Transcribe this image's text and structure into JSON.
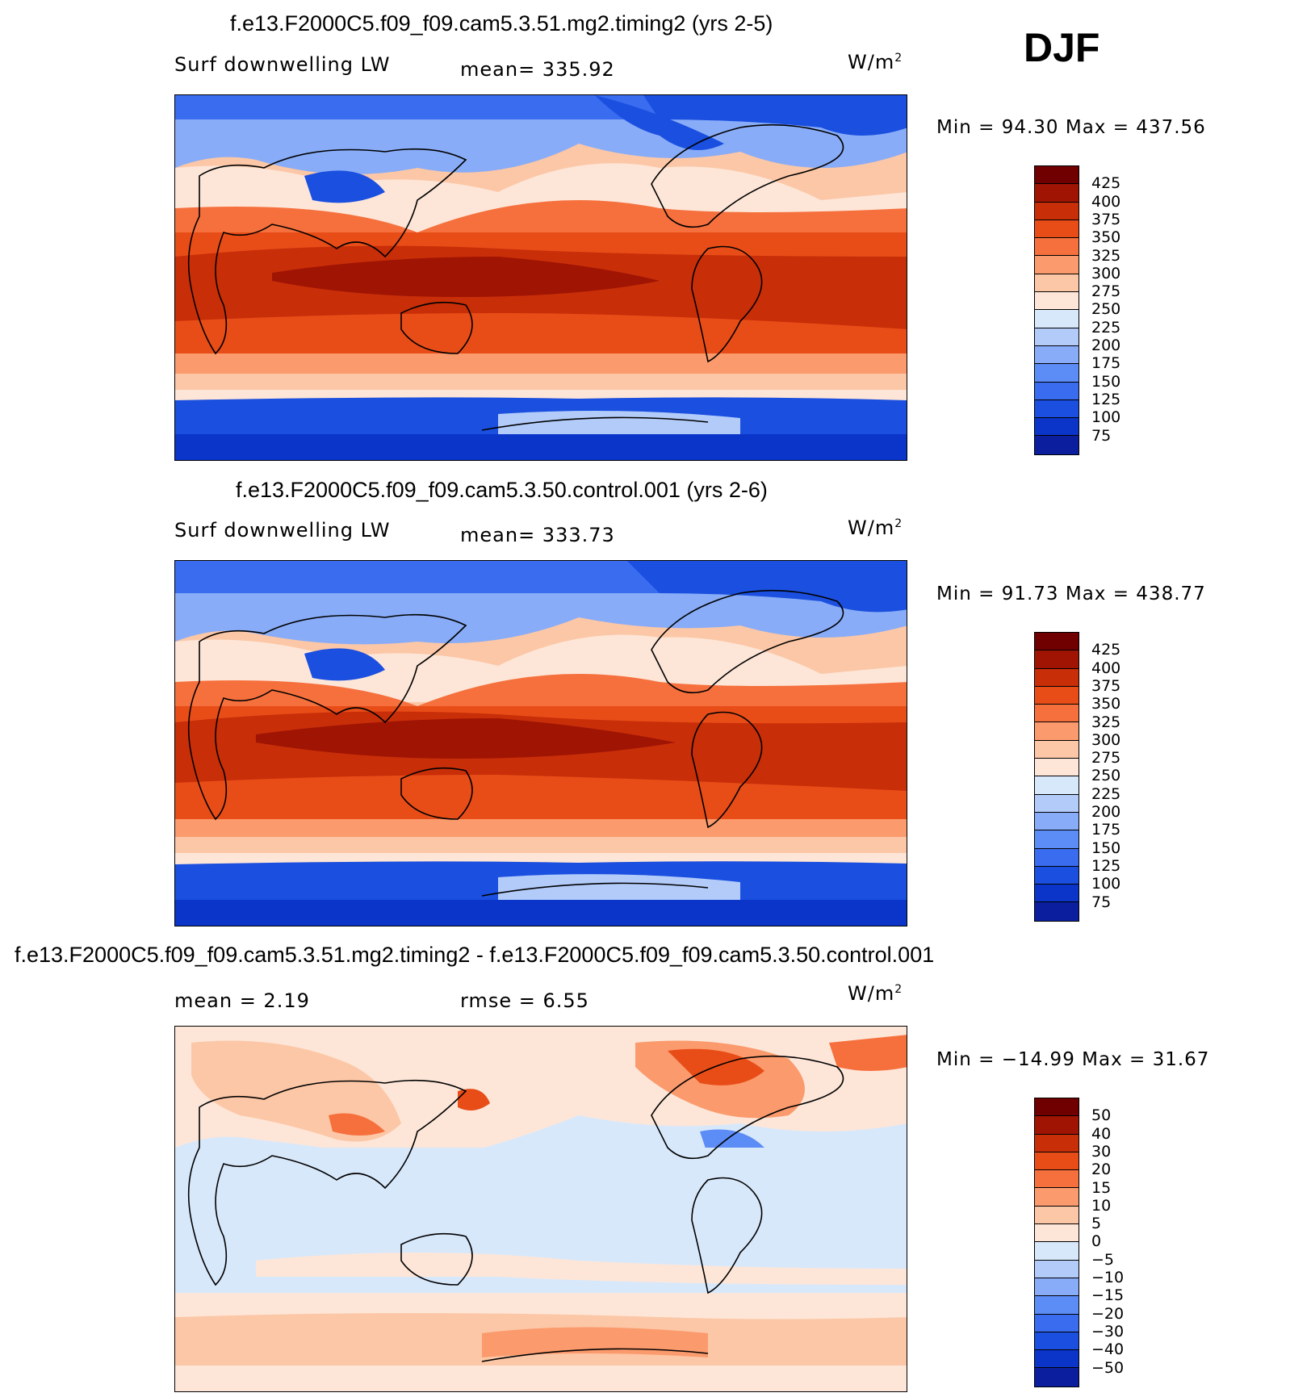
{
  "season": "DJF",
  "colors": {
    "abs": [
      "#0a0a8a",
      "#0b1f9e",
      "#0a35c8",
      "#1a4fe0",
      "#3a6cf0",
      "#5c8cf5",
      "#88acf7",
      "#b2cbf9",
      "#d8e8fb",
      "#fde6d8",
      "#fcc7a6",
      "#fb9a6c",
      "#f6703d",
      "#e84d18",
      "#c82e08",
      "#a01404",
      "#700000"
    ],
    "diff": [
      "#0a0a8a",
      "#0b1f9e",
      "#0a35c8",
      "#1a4fe0",
      "#3a6cf0",
      "#5c8cf5",
      "#88acf7",
      "#b2cbf9",
      "#d8e8fb",
      "#fde6d8",
      "#fcc7a6",
      "#fb9a6c",
      "#f6703d",
      "#e84d18",
      "#c82e08",
      "#a01404",
      "#700000"
    ]
  },
  "panels": [
    {
      "title": "f.e13.F2000C5.f09_f09.cam5.3.51.mg2.timing2 (yrs 2-5)",
      "left_label": "Surf downwelling LW",
      "center_label": "mean= 335.92",
      "units": "W/m",
      "units_sup": "2",
      "minmax": "Min =   94.30  Max  =  437.56",
      "colorbar_labels": [
        "425",
        "400",
        "375",
        "350",
        "325",
        "300",
        "275",
        "250",
        "225",
        "200",
        "175",
        "150",
        "125",
        "100",
        "75"
      ]
    },
    {
      "title": "f.e13.F2000C5.f09_f09.cam5.3.50.control.001 (yrs 2-6)",
      "left_label": "Surf downwelling LW",
      "center_label": "mean= 333.73",
      "units": "W/m",
      "units_sup": "2",
      "minmax": "Min =   91.73  Max  =  438.77",
      "colorbar_labels": [
        "425",
        "400",
        "375",
        "350",
        "325",
        "300",
        "275",
        "250",
        "225",
        "200",
        "175",
        "150",
        "125",
        "100",
        "75"
      ]
    },
    {
      "title": "f.e13.F2000C5.f09_f09.cam5.3.51.mg2.timing2 - f.e13.F2000C5.f09_f09.cam5.3.50.control.001",
      "left_label": "mean =     2.19",
      "center_label": "rmse =     6.55",
      "units": "W/m",
      "units_sup": "2",
      "minmax": "Min  = −14.99  Max  =    31.67",
      "colorbar_labels": [
        "50",
        "40",
        "30",
        "20",
        "15",
        "10",
        "5",
        "0",
        "−5",
        "−10",
        "−15",
        "−20",
        "−30",
        "−40",
        "−50"
      ]
    }
  ]
}
